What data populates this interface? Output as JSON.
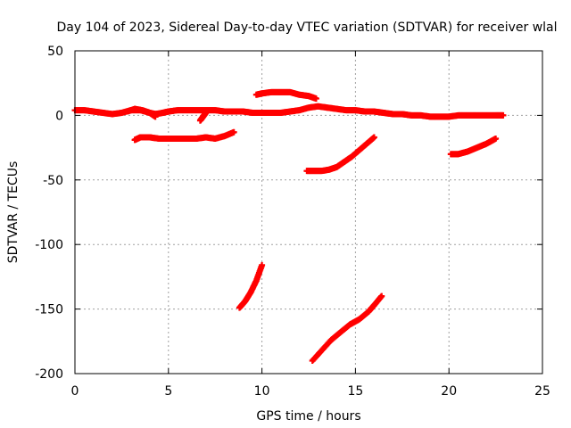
{
  "chart_data": {
    "type": "scatter",
    "title": "Day 104 of 2023, Sidereal Day-to-day VTEC variation (SDTVAR) for receiver wlal",
    "xlabel": "GPS time / hours",
    "ylabel": "SDTVAR / TECUs",
    "xlim": [
      0,
      25
    ],
    "ylim": [
      -200,
      50
    ],
    "x_ticks": [
      0,
      5,
      10,
      15,
      20,
      25
    ],
    "y_ticks": [
      50,
      0,
      -50,
      -100,
      -150,
      -200
    ],
    "x_tick_labels": [
      "0",
      "5",
      "10",
      "15",
      "20",
      "25"
    ],
    "y_tick_labels": [
      "50",
      "0",
      "-50",
      "-100",
      "-150",
      "-200"
    ],
    "grid": true,
    "grid_style": "dotted",
    "marker": "plus",
    "color": "#ff0000",
    "series": [
      {
        "x": [
          0,
          0.5,
          1,
          1.5,
          2,
          2.5,
          3,
          3.5,
          4,
          4.3,
          4.7,
          5,
          5.5,
          6,
          6.5,
          7,
          7.5,
          8,
          8.5,
          9,
          9.5,
          10,
          10.5,
          11,
          11.5,
          12,
          12.5,
          13,
          13.5,
          14,
          14.5,
          15,
          15.5,
          16,
          16.5,
          17,
          17.5,
          18,
          18.5,
          19,
          19.5,
          20,
          20.5,
          21,
          21.5,
          22,
          22.5,
          22.9
        ],
        "y": [
          4,
          4,
          3,
          2,
          1,
          2,
          4,
          4,
          2,
          1,
          2,
          3,
          4,
          4,
          4,
          4,
          4,
          3,
          3,
          3,
          2,
          2,
          2,
          2,
          3,
          4,
          6,
          7,
          6,
          5,
          4,
          4,
          3,
          3,
          2,
          1,
          1,
          0,
          0,
          -1,
          -1,
          -1,
          0,
          0,
          0,
          0,
          0,
          0
        ]
      },
      {
        "x": [
          3.2,
          3.5,
          4.0,
          4.5,
          5.0,
          5.5,
          6.0,
          6.5,
          7.0,
          7.5,
          8.0,
          8.5
        ],
        "y": [
          -19,
          -17,
          -17,
          -18,
          -18,
          -18,
          -18,
          -18,
          -17,
          -18,
          -16,
          -13
        ]
      },
      {
        "x": [
          2.8,
          3.2,
          3.6,
          4.0,
          4.3
        ],
        "y": [
          3,
          5,
          4,
          2,
          -1
        ]
      },
      {
        "x": [
          6.7,
          6.85,
          7.0
        ],
        "y": [
          -4,
          -1,
          2
        ]
      },
      {
        "x": [
          9.7,
          10.0,
          10.5,
          11.0,
          11.5,
          12.0,
          12.5,
          12.9
        ],
        "y": [
          16,
          17,
          18,
          18,
          18,
          16,
          15,
          13
        ]
      },
      {
        "x": [
          12.4,
          12.8,
          13.2,
          13.6,
          14.0,
          14.4,
          14.8,
          15.2,
          15.6,
          16.0
        ],
        "y": [
          -43,
          -43,
          -43,
          -42,
          -40,
          -36,
          -32,
          -27,
          -22,
          -17
        ]
      },
      {
        "x": [
          20.1,
          20.5,
          21.0,
          21.5,
          22.0,
          22.5
        ],
        "y": [
          -30,
          -30,
          -28,
          -25,
          -22,
          -18
        ]
      },
      {
        "x": [
          8.8,
          9.1,
          9.4,
          9.7,
          10.0
        ],
        "y": [
          -149,
          -144,
          -137,
          -128,
          -116
        ]
      },
      {
        "x": [
          12.7,
          13.2,
          13.7,
          14.2,
          14.7,
          15.2,
          15.7,
          16.0,
          16.4
        ],
        "y": [
          -190,
          -182,
          -174,
          -168,
          -162,
          -158,
          -152,
          -147,
          -140
        ]
      }
    ]
  }
}
